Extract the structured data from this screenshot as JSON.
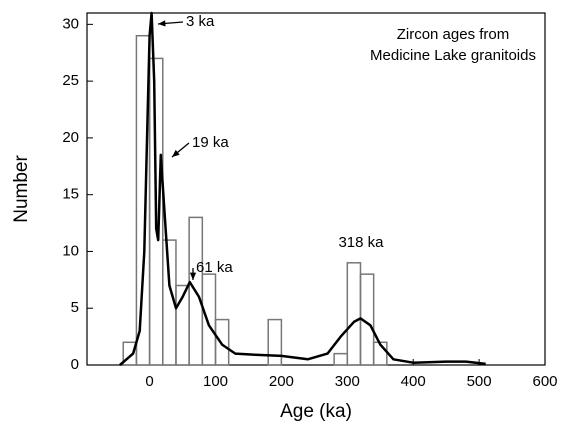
{
  "chart_data": {
    "type": "histogram",
    "xlabel": "Age (ka)",
    "ylabel": "Number",
    "legend_text": [
      "Zircon ages from",
      "Medicine Lake granitoids"
    ],
    "bins": [
      -40,
      -20,
      0,
      20,
      40,
      60,
      80,
      100,
      120,
      140,
      160,
      180,
      200,
      220,
      240,
      260,
      280,
      300,
      320,
      340,
      360
    ],
    "counts": [
      2,
      29,
      27,
      11,
      7,
      13,
      8,
      4,
      0,
      0,
      0,
      4,
      0,
      0,
      0,
      0,
      1,
      9,
      8,
      2
    ],
    "bar_color": "#777777",
    "curve": {
      "color": "#000000",
      "x": [
        -45,
        -35,
        -25,
        -15,
        -8,
        -3,
        0,
        3,
        7,
        10,
        13,
        17,
        22,
        30,
        40,
        50,
        61,
        75,
        90,
        110,
        130,
        160,
        200,
        240,
        270,
        290,
        310,
        320,
        335,
        350,
        370,
        400,
        450,
        480,
        510
      ],
      "values": [
        0,
        0.5,
        1,
        3,
        10,
        22,
        29,
        31,
        25,
        12,
        11,
        18.5,
        14,
        7,
        5,
        6,
        7.3,
        6,
        3.5,
        1.8,
        1,
        0.9,
        0.8,
        0.5,
        1,
        2.5,
        3.8,
        4.1,
        3.5,
        1.8,
        0.5,
        0.2,
        0.3,
        0.3,
        0.1
      ]
    },
    "annotations": [
      "3 ka",
      "19 ka",
      "61 ka",
      "318 ka"
    ],
    "xlim": [
      -95,
      600
    ],
    "ylim": [
      0,
      31
    ],
    "xticks": [
      0,
      100,
      200,
      300,
      400,
      500,
      600
    ],
    "yticks": [
      0,
      5,
      10,
      15,
      20,
      25,
      30
    ]
  }
}
